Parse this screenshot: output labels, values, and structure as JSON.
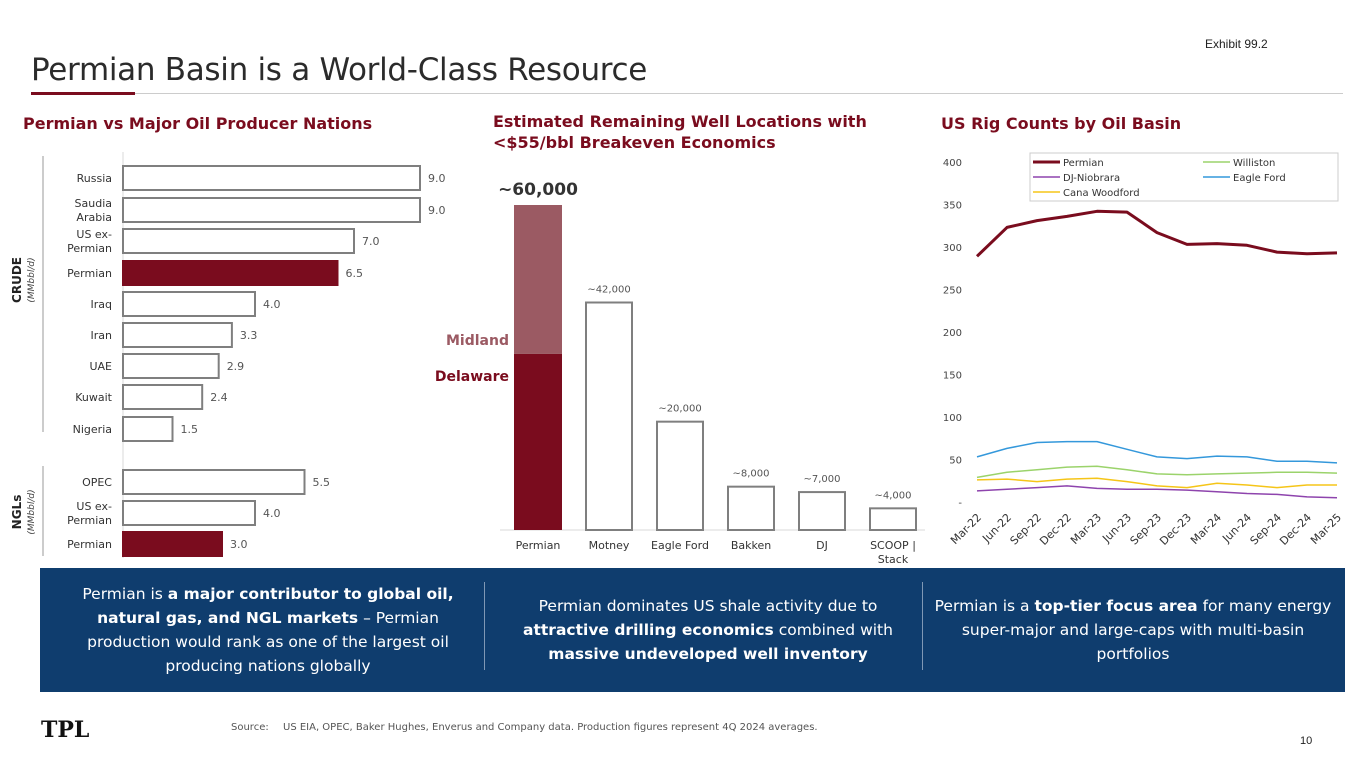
{
  "exhibit": "Exhibit 99.2",
  "title": "Permian Basin is a World-Class Resource",
  "sections": {
    "producers": "Permian vs Major Oil Producer Nations",
    "wells": "Estimated Remaining Well Locations with <$55/bbl Breakeven Economics",
    "rigs": "US Rig Counts by Oil Basin"
  },
  "chart_data": [
    {
      "type": "bar",
      "orientation": "horizontal",
      "title": "Permian vs Major Oil Producer Nations",
      "groups": [
        {
          "label": "CRUDE",
          "unit": "(MMbbl/d)",
          "categories": [
            [
              "Russia"
            ],
            [
              "Saudia",
              "Arabia"
            ],
            [
              "US ex-",
              "Permian"
            ],
            [
              "Permian"
            ],
            [
              "Iraq"
            ],
            [
              "Iran"
            ],
            [
              "UAE"
            ],
            [
              "Kuwait"
            ],
            [
              "Nigeria"
            ]
          ],
          "values": [
            9.0,
            9.0,
            7.0,
            6.5,
            4.0,
            3.3,
            2.9,
            2.4,
            1.5
          ],
          "labels": [
            "9.0",
            "9.0",
            "7.0",
            "6.5",
            "4.0",
            "3.3",
            "2.9",
            "2.4",
            "1.5"
          ],
          "highlight": [
            false,
            false,
            false,
            true,
            false,
            false,
            false,
            false,
            false
          ]
        },
        {
          "label": "NGLs",
          "unit": "(MMbbl/d)",
          "categories": [
            [
              "OPEC"
            ],
            [
              "US ex-",
              "Permian"
            ],
            [
              "Permian"
            ]
          ],
          "values": [
            5.5,
            4.0,
            3.0
          ],
          "labels": [
            "5.5",
            "4.0",
            "3.0"
          ],
          "highlight": [
            false,
            false,
            true
          ]
        }
      ],
      "xlim": [
        0,
        9.0
      ]
    },
    {
      "type": "bar",
      "title": "Estimated Remaining Well Locations with <$55/bbl Breakeven Economics",
      "categories": [
        [
          "Permian"
        ],
        [
          "Motney"
        ],
        [
          "Eagle Ford"
        ],
        [
          "Bakken"
        ],
        [
          "DJ"
        ],
        [
          "SCOOP |",
          "Stack"
        ]
      ],
      "values": [
        60000,
        42000,
        20000,
        8000,
        7000,
        4000
      ],
      "labels": [
        "~60,000",
        "~42,000",
        "~20,000",
        "~8,000",
        "~7,000",
        "~4,000"
      ],
      "permian_stack": [
        {
          "name": "Delaware",
          "value": 32500
        },
        {
          "name": "Midland",
          "value": 27500
        }
      ],
      "ylim": [
        0,
        60000
      ]
    },
    {
      "type": "line",
      "title": "US Rig Counts by Oil Basin",
      "x": [
        "Mar-22",
        "Jun-22",
        "Sep-22",
        "Dec-22",
        "Mar-23",
        "Jun-23",
        "Sep-23",
        "Dec-23",
        "Mar-24",
        "Jun-24",
        "Sep-24",
        "Dec-24",
        "Mar-25"
      ],
      "series": [
        {
          "name": "Permian",
          "values": [
            289,
            323,
            331,
            336,
            342,
            341,
            317,
            303,
            304,
            302,
            294,
            292,
            293
          ]
        },
        {
          "name": "Williston",
          "values": [
            29,
            35,
            38,
            41,
            42,
            38,
            33,
            32,
            33,
            34,
            35,
            35,
            34
          ]
        },
        {
          "name": "DJ-Niobrara",
          "values": [
            13,
            15,
            17,
            19,
            16,
            15,
            15,
            14,
            12,
            10,
            9,
            6,
            5
          ]
        },
        {
          "name": "Eagle Ford",
          "values": [
            53,
            63,
            70,
            71,
            71,
            62,
            53,
            51,
            54,
            53,
            48,
            48,
            46
          ]
        },
        {
          "name": "Cana Woodford",
          "values": [
            26,
            27,
            24,
            27,
            28,
            24,
            19,
            17,
            22,
            20,
            17,
            20,
            20
          ]
        }
      ],
      "yticks": [
        "-",
        "50",
        "100",
        "150",
        "200",
        "250",
        "300",
        "350",
        "400"
      ],
      "ylim": [
        0,
        400
      ],
      "legend": "top"
    }
  ],
  "colors": {
    "accent": "#7a0c1e",
    "midland": "#9b5a63",
    "banner": "#0f3d6e",
    "permian": "#7a0c1e",
    "williston": "#9bd36b",
    "dj": "#8e44ad",
    "eagle_ford": "#3498db",
    "cana": "#f5c518"
  },
  "banner": {
    "col1": [
      {
        "t": "Permian is ",
        "b": false
      },
      {
        "t": "a major contributor to global oil, natural gas, and NGL markets",
        "b": true
      },
      {
        "t": " – Permian production would rank as one of the largest oil producing nations globally",
        "b": false
      }
    ],
    "col2": [
      {
        "t": "Permian dominates US shale activity due to ",
        "b": false
      },
      {
        "t": "attractive drilling economics",
        "b": true
      },
      {
        "t": " combined with ",
        "b": false
      },
      {
        "t": "massive undeveloped well inventory",
        "b": true
      }
    ],
    "col3": [
      {
        "t": "Permian is a ",
        "b": false
      },
      {
        "t": "top-tier focus area",
        "b": true
      },
      {
        "t": " for many energy super-major and large-caps with multi-basin portfolios",
        "b": false
      }
    ]
  },
  "footer": {
    "logo": "TPL",
    "source_label": "Source:",
    "source_text": "US EIA, OPEC, Baker Hughes, Enverus and Company data. Production figures represent 4Q 2024 averages.",
    "page": "10"
  }
}
